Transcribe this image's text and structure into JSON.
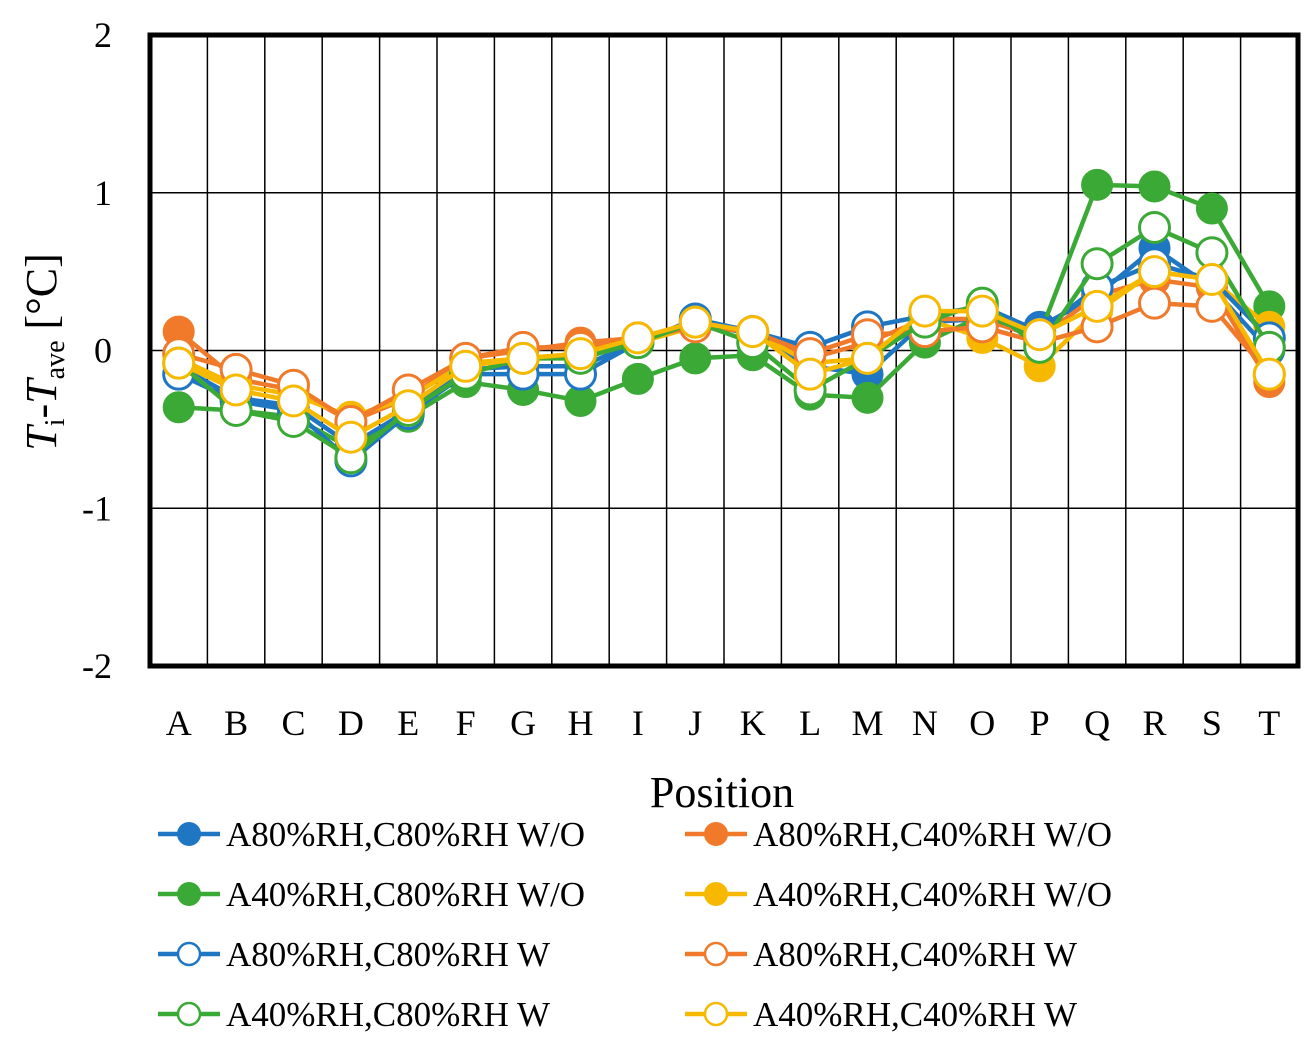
{
  "chart_data": {
    "type": "line",
    "xlabel": "Position",
    "ylabel": {
      "parts": [
        {
          "text": "T",
          "style": "italic"
        },
        {
          "text": "i",
          "style": "sub"
        },
        {
          "text": "-",
          "style": "normal"
        },
        {
          "text": "T",
          "style": "italic"
        },
        {
          "text": "ave",
          "style": "sub"
        },
        {
          "text": " [°C]",
          "style": "normal"
        }
      ]
    },
    "ylim": [
      -2,
      2
    ],
    "yticks": [
      2,
      1,
      0,
      -1,
      -2
    ],
    "ytick_labels": [
      "2",
      "1",
      "0",
      "-1",
      "-2"
    ],
    "grid": true,
    "legend_position": "bottom",
    "categories": [
      "A",
      "B",
      "C",
      "D",
      "E",
      "F",
      "G",
      "H",
      "I",
      "J",
      "K",
      "L",
      "M",
      "N",
      "O",
      "P",
      "Q",
      "R",
      "S",
      "T"
    ],
    "series": [
      {
        "name": "A80%RH,C80%RH W/O",
        "color": "#1f77c4",
        "marker": "filled",
        "values": [
          -0.1,
          -0.3,
          -0.35,
          -0.6,
          -0.38,
          -0.12,
          -0.1,
          -0.1,
          0.05,
          0.18,
          0.1,
          -0.1,
          -0.15,
          0.18,
          0.2,
          0.15,
          0.35,
          0.65,
          0.4,
          0.0
        ]
      },
      {
        "name": "A80%RH,C40%RH W/O",
        "color": "#f07a2a",
        "marker": "filled",
        "values": [
          0.12,
          -0.18,
          -0.25,
          -0.45,
          -0.3,
          -0.05,
          0.0,
          0.05,
          0.08,
          0.15,
          0.12,
          -0.05,
          0.05,
          0.2,
          0.2,
          0.08,
          0.35,
          0.45,
          0.4,
          -0.2
        ]
      },
      {
        "name": "A40%RH,C80%RH W/O",
        "color": "#3aa935",
        "marker": "filled",
        "values": [
          -0.36,
          -0.38,
          -0.42,
          -0.62,
          -0.42,
          -0.2,
          -0.25,
          -0.32,
          -0.18,
          -0.05,
          -0.03,
          -0.28,
          -0.3,
          0.05,
          0.22,
          0.1,
          1.05,
          1.04,
          0.9,
          0.28
        ]
      },
      {
        "name": "A40%RH,C40%RH W/O",
        "color": "#f7b900",
        "marker": "filled",
        "values": [
          -0.05,
          -0.22,
          -0.28,
          -0.42,
          -0.3,
          -0.08,
          -0.05,
          -0.02,
          0.05,
          0.15,
          0.12,
          -0.08,
          -0.05,
          0.2,
          0.08,
          -0.1,
          0.25,
          0.5,
          0.45,
          0.15
        ]
      },
      {
        "name": "A80%RH,C80%RH W",
        "color": "#1f77c4",
        "marker": "hollow",
        "values": [
          -0.15,
          -0.32,
          -0.38,
          -0.7,
          -0.4,
          -0.15,
          -0.15,
          -0.15,
          0.05,
          0.2,
          0.12,
          0.02,
          0.15,
          0.22,
          0.28,
          0.12,
          0.4,
          0.55,
          0.45,
          0.08
        ]
      },
      {
        "name": "A80%RH,C40%RH W",
        "color": "#f07a2a",
        "marker": "hollow",
        "values": [
          -0.02,
          -0.12,
          -0.22,
          -0.45,
          -0.25,
          -0.05,
          0.02,
          0.02,
          0.08,
          0.15,
          0.12,
          -0.02,
          0.1,
          0.12,
          0.15,
          0.05,
          0.15,
          0.3,
          0.28,
          -0.15
        ]
      },
      {
        "name": "A40%RH,C80%RH W",
        "color": "#3aa935",
        "marker": "hollow",
        "values": [
          -0.08,
          -0.38,
          -0.45,
          -0.68,
          -0.38,
          -0.15,
          -0.05,
          -0.05,
          0.05,
          0.18,
          0.05,
          -0.25,
          -0.05,
          0.18,
          0.3,
          0.02,
          0.55,
          0.78,
          0.62,
          0.02
        ]
      },
      {
        "name": "A40%RH,C40%RH W",
        "color": "#f7b900",
        "marker": "hollow",
        "values": [
          -0.08,
          -0.25,
          -0.32,
          -0.55,
          -0.35,
          -0.1,
          -0.05,
          -0.02,
          0.08,
          0.18,
          0.12,
          -0.15,
          -0.05,
          0.25,
          0.25,
          0.1,
          0.28,
          0.5,
          0.45,
          -0.15
        ]
      }
    ]
  }
}
